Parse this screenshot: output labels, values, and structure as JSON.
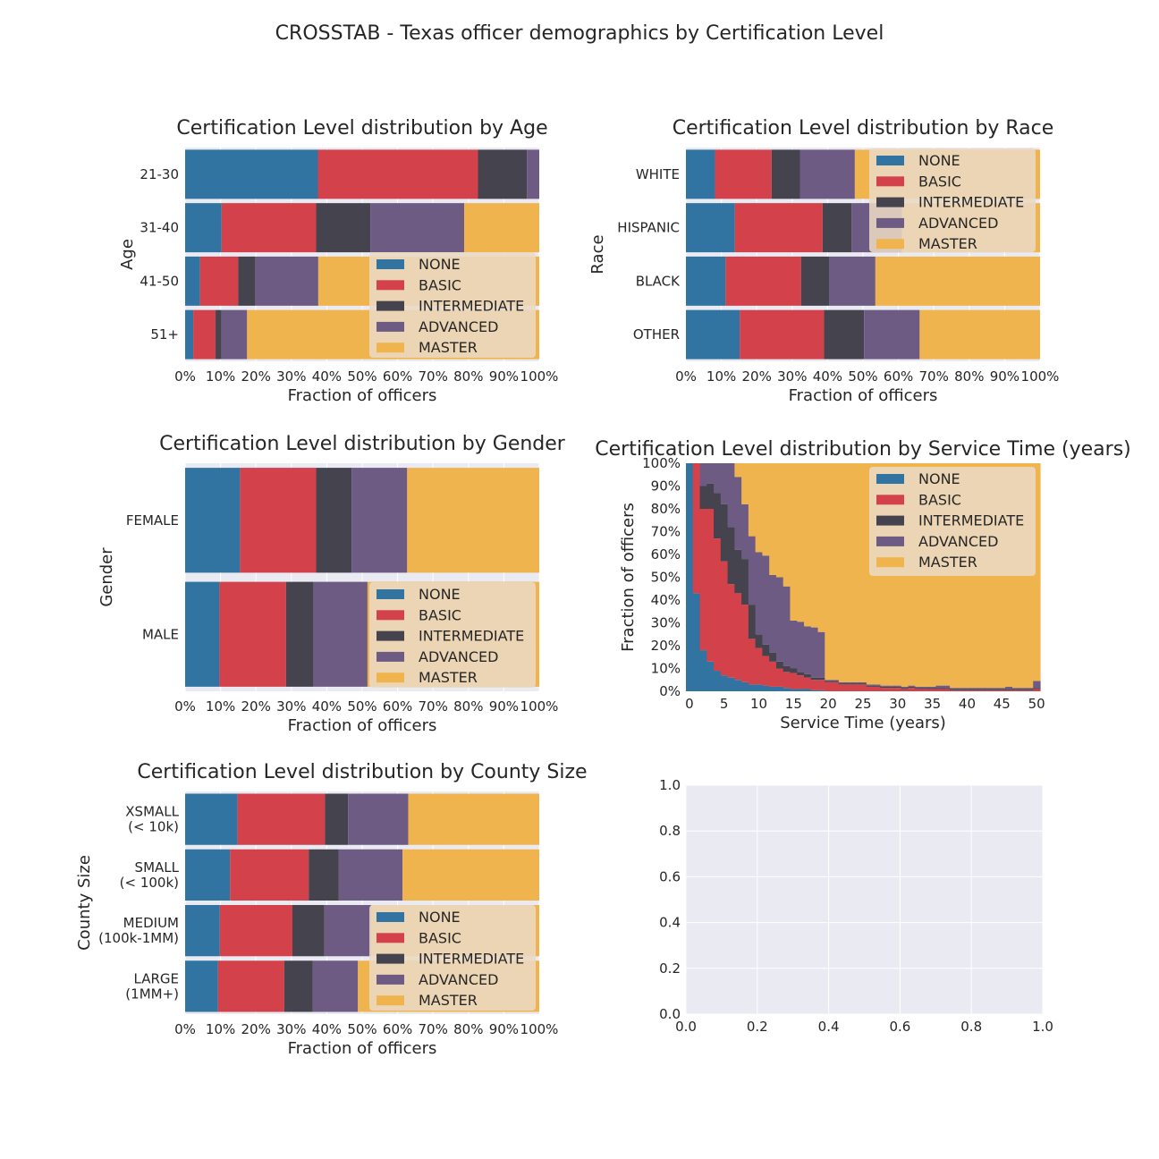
{
  "figure": {
    "suptitle": "CROSSTAB - Texas officer demographics by Certification Level"
  },
  "colors": {
    "NONE": "#3274a1",
    "BASIC": "#d3424a",
    "INTERMEDIATE": "#45434e",
    "ADVANCED": "#6e5b83",
    "MASTER": "#f0b44e",
    "axes_background": "#eaeaf2",
    "grid": "#ffffff",
    "legend_background": "#ead9c3"
  },
  "chart_data": [
    {
      "type": "bar",
      "orientation": "horizontal",
      "stacked": true,
      "title": "Certification Level distribution by Age",
      "xlabel": "Fraction of officers",
      "ylabel": "Age",
      "xlim": [
        0,
        1
      ],
      "xticks": [
        "0%",
        "10%",
        "20%",
        "30%",
        "40%",
        "50%",
        "60%",
        "70%",
        "80%",
        "90%",
        "100%"
      ],
      "legend_position": "lower-right",
      "categories": [
        "21-30",
        "31-40",
        "41-50",
        "51+"
      ],
      "series": [
        {
          "name": "NONE",
          "values": [
            0.375,
            0.103,
            0.042,
            0.023
          ]
        },
        {
          "name": "BASIC",
          "values": [
            0.452,
            0.267,
            0.108,
            0.063
          ]
        },
        {
          "name": "INTERMEDIATE",
          "values": [
            0.138,
            0.153,
            0.048,
            0.017
          ]
        },
        {
          "name": "ADVANCED",
          "values": [
            0.035,
            0.265,
            0.178,
            0.072
          ]
        },
        {
          "name": "MASTER",
          "values": [
            0.0,
            0.212,
            0.624,
            0.825
          ]
        }
      ]
    },
    {
      "type": "bar",
      "orientation": "horizontal",
      "stacked": true,
      "title": "Certification Level distribution by Race",
      "xlabel": "Fraction of officers",
      "ylabel": "Race",
      "xlim": [
        0,
        1
      ],
      "xticks": [
        "0%",
        "10%",
        "20%",
        "30%",
        "40%",
        "50%",
        "60%",
        "70%",
        "80%",
        "90%",
        "100%"
      ],
      "legend_position": "upper-right",
      "categories": [
        "WHITE",
        "HISPANIC",
        "BLACK",
        "OTHER"
      ],
      "series": [
        {
          "name": "NONE",
          "values": [
            0.082,
            0.138,
            0.112,
            0.152
          ]
        },
        {
          "name": "BASIC",
          "values": [
            0.16,
            0.248,
            0.213,
            0.238
          ]
        },
        {
          "name": "INTERMEDIATE",
          "values": [
            0.08,
            0.082,
            0.08,
            0.113
          ]
        },
        {
          "name": "ADVANCED",
          "values": [
            0.155,
            0.142,
            0.13,
            0.157
          ]
        },
        {
          "name": "MASTER",
          "values": [
            0.523,
            0.39,
            0.465,
            0.34
          ]
        }
      ]
    },
    {
      "type": "bar",
      "orientation": "horizontal",
      "stacked": true,
      "title": "Certification Level distribution by Gender",
      "xlabel": "Fraction of officers",
      "ylabel": "Gender",
      "xlim": [
        0,
        1
      ],
      "xticks": [
        "0%",
        "10%",
        "20%",
        "30%",
        "40%",
        "50%",
        "60%",
        "70%",
        "80%",
        "90%",
        "100%"
      ],
      "legend_position": "lower-right",
      "categories": [
        "FEMALE",
        "MALE"
      ],
      "series": [
        {
          "name": "NONE",
          "values": [
            0.155,
            0.097
          ]
        },
        {
          "name": "BASIC",
          "values": [
            0.215,
            0.188
          ]
        },
        {
          "name": "INTERMEDIATE",
          "values": [
            0.1,
            0.078
          ]
        },
        {
          "name": "ADVANCED",
          "values": [
            0.157,
            0.152
          ]
        },
        {
          "name": "MASTER",
          "values": [
            0.373,
            0.485
          ]
        }
      ]
    },
    {
      "type": "area",
      "stacked": true,
      "step": true,
      "title": "Certification Level distribution by Service Time (years)",
      "xlabel": "Service Time (years)",
      "ylabel": "Fraction of officers",
      "xlim": [
        -0.5,
        50.5
      ],
      "ylim": [
        0,
        1
      ],
      "xticks": [
        "0",
        "5",
        "10",
        "15",
        "20",
        "25",
        "30",
        "35",
        "40",
        "45",
        "50"
      ],
      "yticks": [
        "0%",
        "10%",
        "20%",
        "30%",
        "40%",
        "50%",
        "60%",
        "70%",
        "80%",
        "90%",
        "100%"
      ],
      "legend_position": "upper-right",
      "x": [
        0,
        1,
        2,
        3,
        4,
        5,
        6,
        7,
        8,
        9,
        10,
        11,
        12,
        13,
        14,
        15,
        16,
        17,
        18,
        19,
        20,
        21,
        22,
        23,
        24,
        25,
        26,
        27,
        28,
        29,
        30,
        31,
        32,
        33,
        34,
        35,
        36,
        37,
        38,
        39,
        40,
        41,
        42,
        43,
        44,
        45,
        46,
        47,
        48,
        49,
        50
      ],
      "series": [
        {
          "name": "NONE",
          "values": [
            1.0,
            0.43,
            0.18,
            0.13,
            0.09,
            0.07,
            0.06,
            0.05,
            0.04,
            0.03,
            0.03,
            0.025,
            0.02,
            0.02,
            0.015,
            0.01,
            0.01,
            0.01,
            0.005,
            0.005,
            0,
            0,
            0,
            0,
            0,
            0,
            0,
            0,
            0,
            0,
            0,
            0,
            0,
            0,
            0,
            0,
            0,
            0,
            0,
            0,
            0,
            0,
            0,
            0,
            0,
            0,
            0,
            0,
            0,
            0,
            0
          ]
        },
        {
          "name": "BASIC",
          "values": [
            0,
            0.57,
            0.62,
            0.67,
            0.58,
            0.5,
            0.41,
            0.38,
            0.34,
            0.2,
            0.16,
            0.13,
            0.11,
            0.08,
            0.07,
            0.07,
            0.06,
            0.05,
            0.045,
            0.045,
            0.04,
            0.04,
            0.03,
            0.03,
            0.03,
            0.03,
            0.02,
            0.02,
            0.015,
            0.015,
            0.015,
            0.01,
            0.015,
            0.01,
            0.01,
            0.01,
            0.01,
            0.01,
            0.005,
            0.005,
            0.005,
            0.005,
            0.005,
            0.005,
            0.005,
            0.005,
            0.005,
            0.005,
            0.005,
            0.005,
            0.01
          ]
        },
        {
          "name": "INTERMEDIATE",
          "values": [
            0,
            0,
            0.1,
            0.11,
            0.2,
            0.25,
            0.25,
            0.19,
            0.2,
            0.15,
            0.06,
            0.05,
            0.04,
            0.03,
            0.025,
            0.02,
            0.015,
            0.015,
            0.01,
            0.01,
            0.005,
            0.005,
            0.005,
            0.005,
            0.005,
            0.005,
            0.005,
            0.005,
            0.005,
            0.005,
            0.005,
            0.005,
            0.005,
            0.005,
            0.005,
            0.005,
            0.005,
            0.005,
            0.005,
            0.005,
            0.005,
            0.005,
            0.005,
            0.005,
            0.005,
            0.005,
            0.005,
            0.005,
            0.005,
            0.005,
            0.005
          ]
        },
        {
          "name": "ADVANCED",
          "values": [
            0,
            0,
            0.1,
            0.09,
            0.13,
            0.18,
            0.28,
            0.32,
            0.24,
            0.3,
            0.36,
            0.39,
            0.34,
            0.37,
            0.35,
            0.21,
            0.22,
            0.21,
            0.22,
            0.2,
            0.005,
            0.005,
            0.005,
            0.005,
            0.005,
            0.005,
            0.005,
            0.005,
            0.005,
            0.005,
            0.005,
            0.005,
            0.005,
            0.005,
            0.005,
            0.005,
            0.01,
            0.01,
            0.005,
            0.005,
            0.005,
            0.005,
            0.005,
            0.005,
            0.005,
            0.005,
            0.01,
            0.005,
            0.005,
            0.005,
            0.03
          ]
        },
        {
          "name": "MASTER",
          "values": [
            0,
            0,
            0,
            0,
            0,
            0,
            0,
            0.06,
            0.18,
            0.32,
            0.39,
            0.405,
            0.49,
            0.5,
            0.54,
            0.69,
            0.695,
            0.715,
            0.72,
            0.74,
            0.95,
            0.95,
            0.96,
            0.96,
            0.96,
            0.96,
            0.97,
            0.97,
            0.975,
            0.975,
            0.975,
            0.98,
            0.975,
            0.98,
            0.98,
            0.98,
            0.975,
            0.975,
            0.985,
            0.985,
            0.985,
            0.985,
            0.985,
            0.985,
            0.985,
            0.985,
            0.98,
            0.985,
            0.985,
            0.985,
            0.955
          ]
        }
      ]
    },
    {
      "type": "bar",
      "orientation": "horizontal",
      "stacked": true,
      "title": "Certification Level distribution by County Size",
      "xlabel": "Fraction of officers",
      "ylabel": "County Size",
      "xlim": [
        0,
        1
      ],
      "xticks": [
        "0%",
        "10%",
        "20%",
        "30%",
        "40%",
        "50%",
        "60%",
        "70%",
        "80%",
        "90%",
        "100%"
      ],
      "legend_position": "lower-right",
      "categories": [
        "XSMALL\n(< 10k)",
        "SMALL\n(< 100k)",
        "MEDIUM\n(100k-1MM)",
        "LARGE\n(1MM+)"
      ],
      "series": [
        {
          "name": "NONE",
          "values": [
            0.148,
            0.127,
            0.098,
            0.093
          ]
        },
        {
          "name": "BASIC",
          "values": [
            0.247,
            0.222,
            0.205,
            0.187
          ]
        },
        {
          "name": "INTERMEDIATE",
          "values": [
            0.065,
            0.085,
            0.09,
            0.08
          ]
        },
        {
          "name": "ADVANCED",
          "values": [
            0.17,
            0.18,
            0.132,
            0.128
          ]
        },
        {
          "name": "MASTER",
          "values": [
            0.37,
            0.386,
            0.475,
            0.512
          ]
        }
      ]
    },
    {
      "type": "line",
      "title": "",
      "xlabel": "",
      "ylabel": "",
      "xlim": [
        0,
        1
      ],
      "ylim": [
        0,
        1
      ],
      "xticks": [
        "0.0",
        "0.2",
        "0.4",
        "0.6",
        "0.8",
        "1.0"
      ],
      "yticks": [
        "0.0",
        "0.2",
        "0.4",
        "0.6",
        "0.8",
        "1.0"
      ],
      "series": []
    }
  ]
}
